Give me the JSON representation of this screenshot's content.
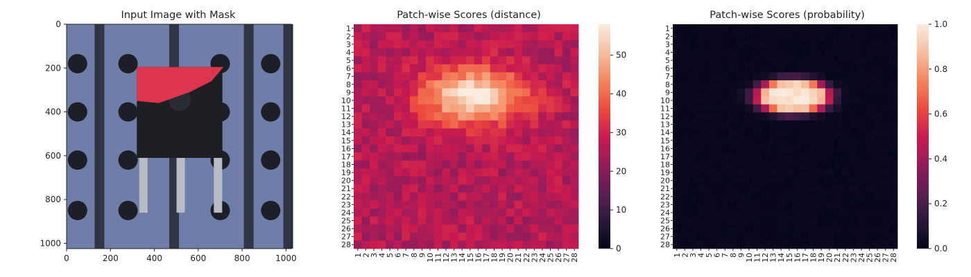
{
  "chart_data": [
    {
      "type": "image",
      "title": "Input Image with Mask",
      "x_ticks": [
        "0",
        "200",
        "400",
        "600",
        "800",
        "1000"
      ],
      "y_ticks": [
        "0",
        "200",
        "400",
        "600",
        "800",
        "1000"
      ],
      "xlim": [
        0,
        1024
      ],
      "ylim": [
        0,
        1024
      ],
      "image": {
        "background_color": "#6f7ea8",
        "stripe_color": "#2f3542",
        "hole_color": "#1c1f27",
        "chip_color": "#1e1f23",
        "mask_color": "#ff3a55",
        "stripes_x": [
          150,
          490,
          830,
          1010
        ],
        "holes": [
          [
            50,
            180
          ],
          [
            280,
            180
          ],
          [
            700,
            180
          ],
          [
            930,
            180
          ],
          [
            50,
            400
          ],
          [
            280,
            400
          ],
          [
            700,
            400
          ],
          [
            930,
            400
          ],
          [
            50,
            620
          ],
          [
            280,
            620
          ],
          [
            700,
            620
          ],
          [
            930,
            620
          ],
          [
            50,
            850
          ],
          [
            280,
            850
          ],
          [
            700,
            850
          ],
          [
            930,
            850
          ]
        ],
        "chip": {
          "x0": 320,
          "x1": 710,
          "y0": 195,
          "y1": 610
        },
        "mask_polygon": [
          [
            320,
            195
          ],
          [
            715,
            195
          ],
          [
            660,
            260
          ],
          [
            560,
            310
          ],
          [
            420,
            360
          ],
          [
            320,
            350
          ]
        ],
        "leads_x": [
          350,
          520,
          690
        ]
      }
    },
    {
      "type": "heatmap",
      "title": "Patch-wise Scores (distance)",
      "x_ticks": [
        "1",
        "2",
        "3",
        "4",
        "5",
        "6",
        "7",
        "8",
        "9",
        "10",
        "11",
        "12",
        "13",
        "14",
        "15",
        "16",
        "17",
        "18",
        "19",
        "20",
        "21",
        "22",
        "23",
        "24",
        "25",
        "26",
        "27",
        "28"
      ],
      "y_ticks": [
        "1",
        "2",
        "3",
        "4",
        "5",
        "6",
        "7",
        "8",
        "9",
        "10",
        "11",
        "12",
        "13",
        "14",
        "15",
        "16",
        "17",
        "18",
        "19",
        "20",
        "21",
        "22",
        "23",
        "24",
        "25",
        "26",
        "27",
        "28"
      ],
      "colorbar_ticks": [
        0,
        10,
        20,
        30,
        40,
        50
      ],
      "vmin": 0,
      "vmax": 58,
      "grid_size": 28,
      "model": {
        "baseline": 26,
        "blob_center": [
          15.5,
          9.5
        ],
        "blob_sigma": [
          4.5,
          2.4
        ],
        "blob_peak": 32
      },
      "colormap": "rocket"
    },
    {
      "type": "heatmap",
      "title": "Patch-wise Scores (probability)",
      "x_ticks": [
        "1",
        "2",
        "3",
        "4",
        "5",
        "6",
        "7",
        "8",
        "9",
        "10",
        "11",
        "12",
        "13",
        "14",
        "15",
        "16",
        "17",
        "18",
        "19",
        "20",
        "21",
        "22",
        "23",
        "24",
        "25",
        "26",
        "27",
        "28"
      ],
      "y_ticks": [
        "1",
        "2",
        "3",
        "4",
        "5",
        "6",
        "7",
        "8",
        "9",
        "10",
        "11",
        "12",
        "13",
        "14",
        "15",
        "16",
        "17",
        "18",
        "19",
        "20",
        "21",
        "22",
        "23",
        "24",
        "25",
        "26",
        "27",
        "28"
      ],
      "colorbar_ticks": [
        0.0,
        0.2,
        0.4,
        0.6,
        0.8,
        1.0
      ],
      "colorbar_tick_labels": [
        "0.0",
        "0.2",
        "0.4",
        "0.6",
        "0.8",
        "1.0"
      ],
      "vmin": 0,
      "vmax": 1,
      "grid_size": 28,
      "model": {
        "blob_center": [
          15.5,
          9.5
        ],
        "blob_sigma": [
          3.9,
          1.8
        ],
        "threshold": 0.5,
        "steepness": 12
      },
      "colormap": "rocket"
    }
  ]
}
